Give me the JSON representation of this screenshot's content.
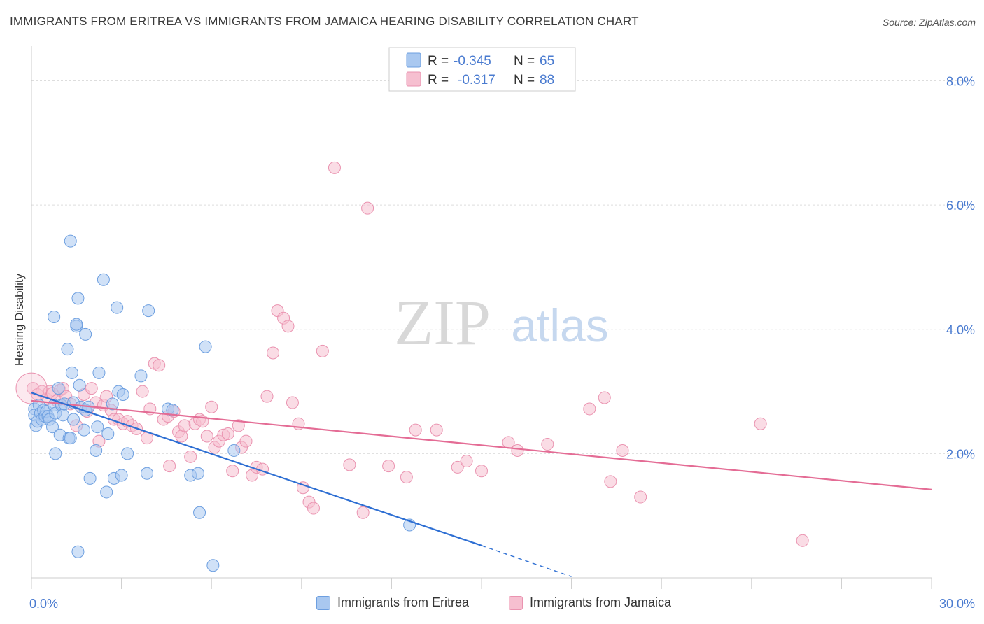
{
  "title": "IMMIGRANTS FROM ERITREA VS IMMIGRANTS FROM JAMAICA HEARING DISABILITY CORRELATION CHART",
  "source": "Source: ZipAtlas.com",
  "watermark": {
    "zip": "ZIP",
    "atlas": "atlas"
  },
  "colors": {
    "eritrea_fill": "#a9c8f0",
    "eritrea_stroke": "#6d9fe0",
    "eritrea_line": "#2e6fd3",
    "jamaica_fill": "#f6bfd0",
    "jamaica_stroke": "#ea93b0",
    "jamaica_line": "#e46c95",
    "tick_label": "#4a7bd0",
    "grid": "#dddddd"
  },
  "legend": {
    "rows": [
      {
        "r_label": "R =",
        "r_value": "-0.345",
        "n_label": "N =",
        "n_value": "65"
      },
      {
        "r_label": "R =",
        "r_value": "-0.317",
        "n_label": "N =",
        "n_value": "88"
      }
    ]
  },
  "bottom_legend": {
    "eritrea": "Immigrants from Eritrea",
    "jamaica": "Immigrants from Jamaica"
  },
  "chart_data": {
    "type": "scatter",
    "title": "IMMIGRANTS FROM ERITREA VS IMMIGRANTS FROM JAMAICA HEARING DISABILITY CORRELATION CHART",
    "xlabel": "",
    "ylabel": "Hearing Disability",
    "xlim": [
      0,
      30
    ],
    "ylim": [
      0,
      8.4
    ],
    "x_tick_labels": [
      {
        "value": 0,
        "label": "0.0%"
      },
      {
        "value": 30,
        "label": "30.0%"
      }
    ],
    "y_tick_labels": [
      {
        "value": 2,
        "label": "2.0%"
      },
      {
        "value": 4,
        "label": "4.0%"
      },
      {
        "value": 6,
        "label": "6.0%"
      },
      {
        "value": 8,
        "label": "8.0%"
      }
    ],
    "grid": true,
    "legend_position": "top-center",
    "series": [
      {
        "name": "Immigrants from Eritrea",
        "r": -0.345,
        "n": 65,
        "trend": {
          "x0": 0.0,
          "y0": 2.98,
          "x1": 15.0,
          "y1": 0.52,
          "dash_to_x": 18.0,
          "dash_to_y": 0.02
        },
        "points": [
          [
            0.1,
            2.72
          ],
          [
            0.1,
            2.62
          ],
          [
            0.15,
            2.45
          ],
          [
            0.2,
            2.52
          ],
          [
            0.25,
            2.78
          ],
          [
            0.3,
            2.65
          ],
          [
            0.35,
            2.55
          ],
          [
            0.4,
            2.7
          ],
          [
            0.45,
            2.6
          ],
          [
            0.5,
            2.68
          ],
          [
            0.55,
            2.6
          ],
          [
            0.6,
            2.55
          ],
          [
            0.7,
            2.43
          ],
          [
            0.75,
            2.78
          ],
          [
            0.8,
            2.65
          ],
          [
            0.8,
            2.0
          ],
          [
            0.9,
            3.05
          ],
          [
            0.95,
            2.3
          ],
          [
            1.0,
            2.78
          ],
          [
            1.05,
            2.62
          ],
          [
            1.1,
            2.8
          ],
          [
            1.2,
            3.68
          ],
          [
            1.25,
            2.25
          ],
          [
            1.3,
            2.25
          ],
          [
            1.35,
            3.3
          ],
          [
            1.4,
            2.82
          ],
          [
            1.4,
            2.55
          ],
          [
            1.5,
            4.05
          ],
          [
            1.55,
            4.5
          ],
          [
            1.6,
            3.1
          ],
          [
            1.65,
            2.75
          ],
          [
            1.75,
            2.38
          ],
          [
            1.8,
            3.92
          ],
          [
            1.5,
            4.08
          ],
          [
            1.3,
            5.42
          ],
          [
            0.75,
            4.2
          ],
          [
            1.55,
            0.42
          ],
          [
            1.8,
            2.7
          ],
          [
            1.9,
            2.75
          ],
          [
            1.95,
            1.6
          ],
          [
            2.15,
            2.05
          ],
          [
            2.2,
            2.43
          ],
          [
            2.25,
            3.3
          ],
          [
            2.4,
            4.8
          ],
          [
            2.5,
            1.38
          ],
          [
            2.55,
            2.32
          ],
          [
            2.7,
            2.8
          ],
          [
            2.75,
            1.6
          ],
          [
            2.85,
            4.35
          ],
          [
            2.9,
            3.0
          ],
          [
            3.0,
            1.65
          ],
          [
            3.05,
            2.95
          ],
          [
            3.2,
            2.0
          ],
          [
            3.65,
            3.25
          ],
          [
            3.9,
            4.3
          ],
          [
            3.85,
            1.68
          ],
          [
            4.55,
            2.72
          ],
          [
            4.7,
            2.7
          ],
          [
            5.3,
            1.65
          ],
          [
            5.55,
            1.68
          ],
          [
            5.6,
            1.05
          ],
          [
            5.8,
            3.72
          ],
          [
            6.05,
            0.2
          ],
          [
            6.75,
            2.05
          ],
          [
            12.6,
            0.85
          ]
        ]
      },
      {
        "name": "Immigrants from Jamaica",
        "r": -0.317,
        "n": 88,
        "trend": {
          "x0": 0.0,
          "y0": 2.85,
          "x1": 30.0,
          "y1": 1.42
        },
        "points": [
          [
            0.05,
            3.05
          ],
          [
            0.2,
            2.95
          ],
          [
            0.35,
            3.0
          ],
          [
            0.5,
            2.88
          ],
          [
            0.6,
            3.0
          ],
          [
            0.7,
            2.97
          ],
          [
            0.85,
            2.85
          ],
          [
            0.95,
            3.02
          ],
          [
            1.05,
            3.05
          ],
          [
            1.15,
            2.92
          ],
          [
            1.3,
            2.8
          ],
          [
            1.5,
            2.45
          ],
          [
            1.65,
            2.75
          ],
          [
            1.75,
            2.95
          ],
          [
            1.85,
            2.68
          ],
          [
            2.0,
            3.05
          ],
          [
            2.15,
            2.82
          ],
          [
            2.25,
            2.2
          ],
          [
            2.4,
            2.78
          ],
          [
            2.5,
            2.92
          ],
          [
            2.65,
            2.7
          ],
          [
            2.75,
            2.55
          ],
          [
            2.9,
            2.55
          ],
          [
            3.05,
            2.48
          ],
          [
            3.2,
            2.52
          ],
          [
            3.35,
            2.45
          ],
          [
            3.5,
            2.4
          ],
          [
            3.7,
            3.0
          ],
          [
            3.85,
            2.25
          ],
          [
            3.95,
            2.72
          ],
          [
            4.1,
            3.45
          ],
          [
            4.25,
            3.42
          ],
          [
            4.4,
            2.55
          ],
          [
            4.55,
            2.6
          ],
          [
            4.6,
            1.8
          ],
          [
            4.75,
            2.68
          ],
          [
            4.9,
            2.35
          ],
          [
            5.0,
            2.28
          ],
          [
            5.1,
            2.45
          ],
          [
            5.3,
            1.95
          ],
          [
            5.45,
            2.48
          ],
          [
            5.6,
            2.55
          ],
          [
            5.7,
            2.52
          ],
          [
            5.85,
            2.28
          ],
          [
            6.0,
            2.75
          ],
          [
            6.1,
            2.1
          ],
          [
            6.25,
            2.2
          ],
          [
            6.4,
            2.3
          ],
          [
            6.55,
            2.32
          ],
          [
            6.7,
            1.72
          ],
          [
            6.9,
            2.45
          ],
          [
            7.0,
            2.1
          ],
          [
            7.15,
            2.2
          ],
          [
            7.35,
            1.65
          ],
          [
            7.5,
            1.78
          ],
          [
            7.7,
            1.75
          ],
          [
            7.85,
            2.92
          ],
          [
            8.05,
            3.62
          ],
          [
            8.2,
            4.3
          ],
          [
            8.4,
            4.18
          ],
          [
            8.55,
            4.05
          ],
          [
            8.7,
            2.82
          ],
          [
            8.9,
            2.48
          ],
          [
            9.05,
            1.45
          ],
          [
            9.25,
            1.22
          ],
          [
            9.4,
            1.12
          ],
          [
            9.7,
            3.65
          ],
          [
            10.1,
            6.6
          ],
          [
            11.2,
            5.95
          ],
          [
            11.9,
            1.8
          ],
          [
            12.5,
            1.62
          ],
          [
            12.8,
            2.38
          ],
          [
            13.5,
            2.38
          ],
          [
            14.2,
            1.78
          ],
          [
            14.5,
            1.88
          ],
          [
            15.0,
            1.72
          ],
          [
            15.9,
            2.18
          ],
          [
            16.2,
            2.05
          ],
          [
            17.2,
            2.15
          ],
          [
            18.6,
            2.72
          ],
          [
            19.1,
            2.9
          ],
          [
            19.3,
            1.55
          ],
          [
            19.7,
            2.05
          ],
          [
            20.3,
            1.3
          ],
          [
            24.3,
            2.48
          ],
          [
            25.7,
            0.6
          ],
          [
            10.6,
            1.82
          ],
          [
            11.05,
            1.05
          ]
        ]
      }
    ]
  }
}
